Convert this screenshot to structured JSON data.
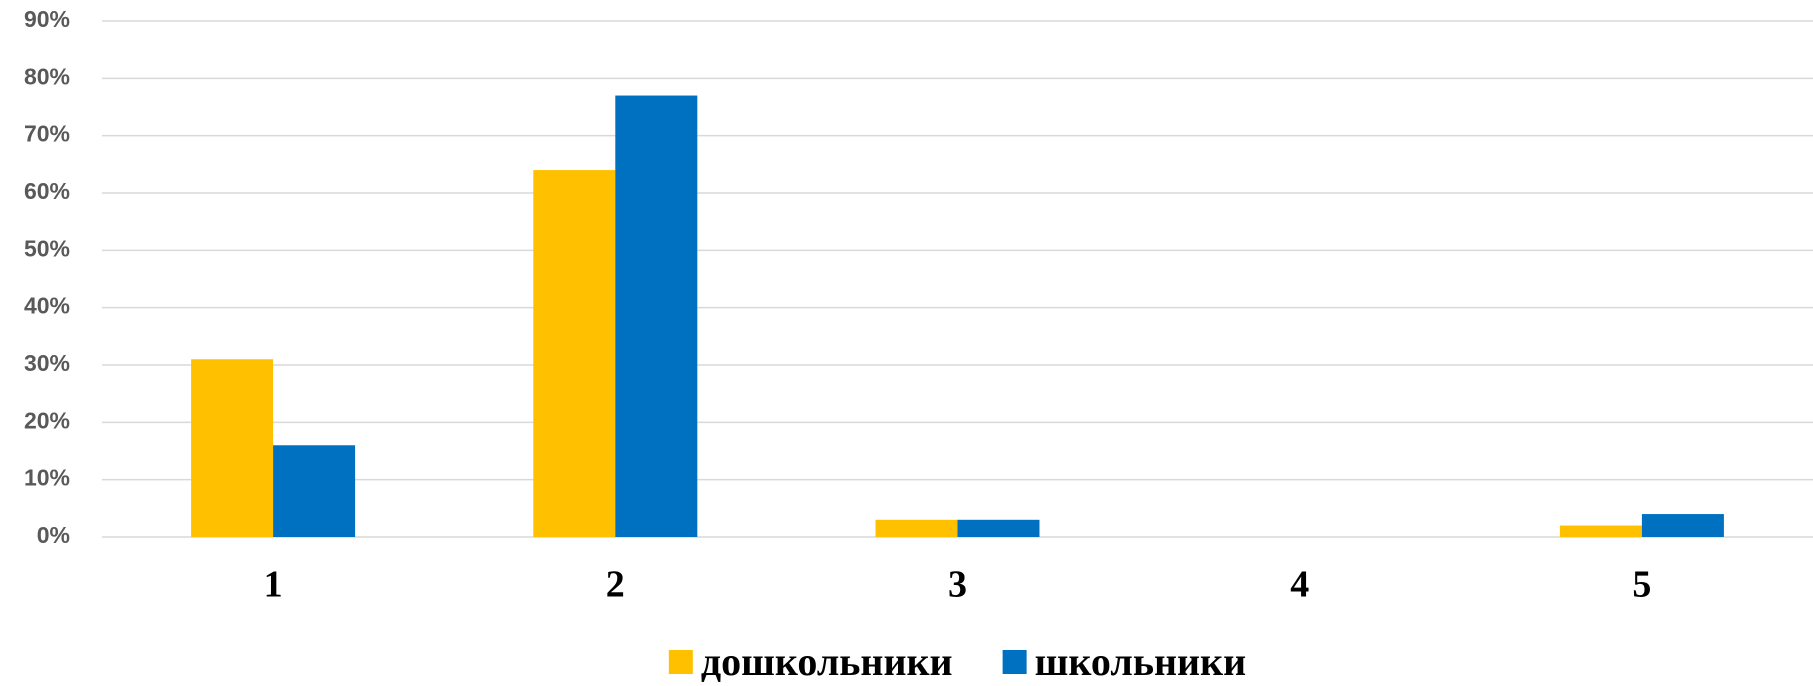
{
  "chart_data": {
    "type": "bar",
    "categories": [
      "1",
      "2",
      "3",
      "4",
      "5"
    ],
    "series": [
      {
        "name": "дошкольники",
        "color": "#FFC000",
        "values": [
          31,
          64,
          3,
          0,
          2
        ]
      },
      {
        "name": "школьники",
        "color": "#0070C0",
        "values": [
          16,
          77,
          3,
          0,
          4
        ]
      }
    ],
    "ylim": [
      0,
      90
    ],
    "yticks": [
      {
        "value": 0,
        "label": "0%"
      },
      {
        "value": 10,
        "label": "10%"
      },
      {
        "value": 20,
        "label": "20%"
      },
      {
        "value": 30,
        "label": "30%"
      },
      {
        "value": 40,
        "label": "40%"
      },
      {
        "value": 50,
        "label": "50%"
      },
      {
        "value": 60,
        "label": "60%"
      },
      {
        "value": 70,
        "label": "70%"
      },
      {
        "value": 80,
        "label": "80%"
      },
      {
        "value": 90,
        "label": "90%"
      }
    ],
    "grid": true,
    "legend": "bottom"
  }
}
